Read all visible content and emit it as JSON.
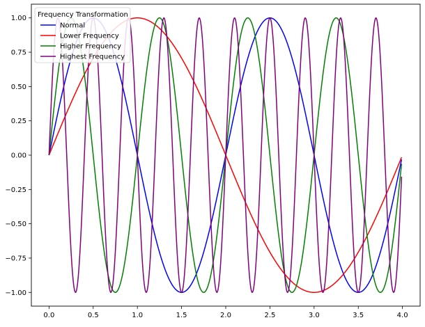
{
  "chart_data": {
    "type": "line",
    "title": "",
    "xlabel": "",
    "ylabel": "",
    "xlim": [
      -0.2,
      4.2
    ],
    "ylim": [
      -1.1,
      1.1
    ],
    "xticks": [
      0.0,
      0.5,
      1.0,
      1.5,
      2.0,
      2.5,
      3.0,
      3.5,
      4.0
    ],
    "xtick_labels": [
      "0.0",
      "0.5",
      "1.0",
      "1.5",
      "2.0",
      "2.5",
      "3.0",
      "3.5",
      "4.0"
    ],
    "yticks": [
      -1.0,
      -0.75,
      -0.5,
      -0.25,
      0.0,
      0.25,
      0.5,
      0.75,
      1.0
    ],
    "ytick_labels": [
      "−1.00",
      "−0.75",
      "−0.50",
      "−0.25",
      "0.00",
      "0.25",
      "0.50",
      "0.75",
      "1.00"
    ],
    "grid": false,
    "legend": {
      "title": "Frequency Transformation",
      "placement": "top-left"
    },
    "x_range": [
      0.0,
      3.99
    ],
    "function": "sin",
    "series": [
      {
        "name": "Normal",
        "color": "#0000ff",
        "frequency": 0.5,
        "amplitude": 1.0
      },
      {
        "name": "Lower Frequency",
        "color": "#ff0000",
        "frequency": 0.25,
        "amplitude": 1.0
      },
      {
        "name": "Higher Frequency",
        "color": "#008000",
        "frequency": 1.0,
        "amplitude": 1.0
      },
      {
        "name": "Highest Frequency",
        "color": "#800080",
        "frequency": 2.5,
        "amplitude": 1.0
      }
    ]
  }
}
